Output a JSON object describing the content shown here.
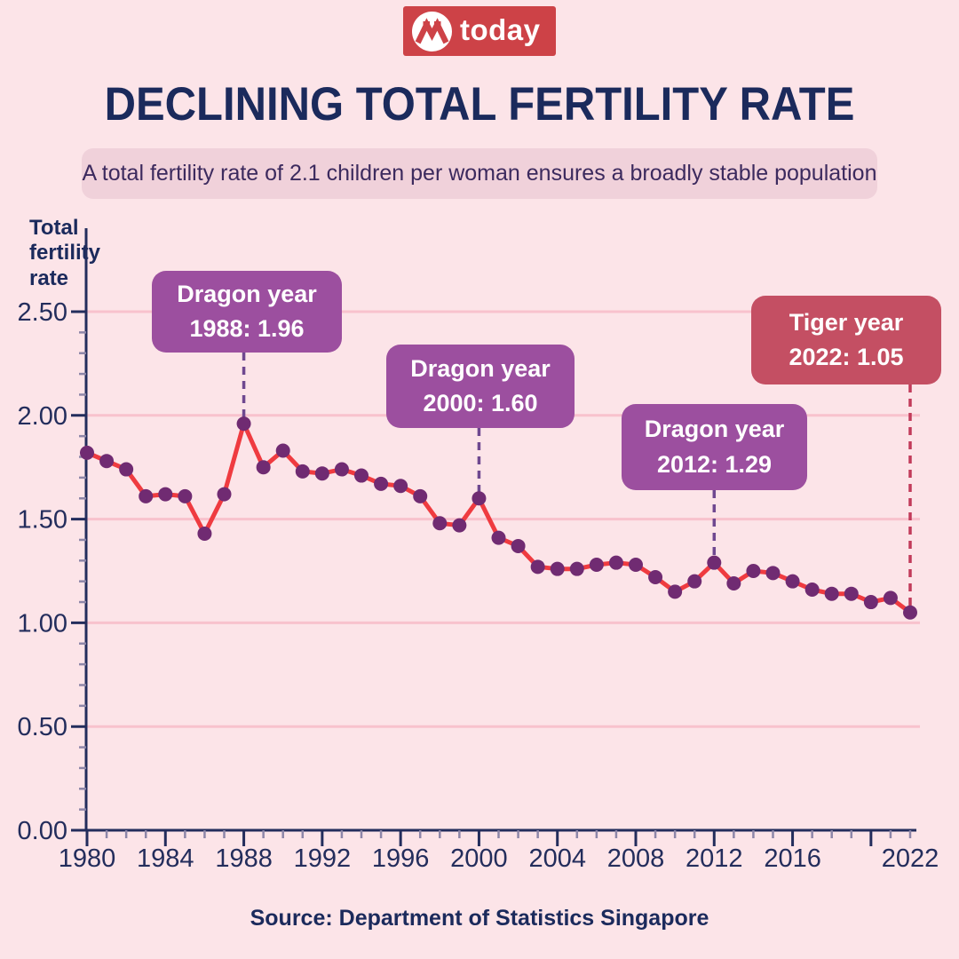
{
  "page": {
    "background": "#fce4e8"
  },
  "logo": {
    "brand": "today",
    "box_color": "#cd4247",
    "mark_icon": "today-m-mark"
  },
  "title": "DECLINING TOTAL FERTILITY RATE",
  "subtitle": "A total fertility rate of 2.1 children per woman ensures a broadly stable population",
  "source": "Source: Department of Statistics Singapore",
  "chart_data": {
    "type": "line",
    "title": "",
    "xlabel": "",
    "ylabel": "Total fertility rate",
    "ylabel_lines": [
      "Total",
      "fertility",
      "rate"
    ],
    "ylim": [
      0,
      2.5
    ],
    "ytick_step": 0.5,
    "yminor_step": 0.1,
    "ytick_labels": [
      "0.00",
      "0.50",
      "1.00",
      "1.50",
      "2.00",
      "2.50"
    ],
    "xtick_labels": [
      "1980",
      "1984",
      "1988",
      "1992",
      "1996",
      "2000",
      "2004",
      "2008",
      "2012",
      "2016",
      "2022"
    ],
    "grid": true,
    "legend": "none",
    "x": [
      1980,
      1981,
      1982,
      1983,
      1984,
      1985,
      1986,
      1987,
      1988,
      1989,
      1990,
      1991,
      1992,
      1993,
      1994,
      1995,
      1996,
      1997,
      1998,
      1999,
      2000,
      2001,
      2002,
      2003,
      2004,
      2005,
      2006,
      2007,
      2008,
      2009,
      2010,
      2011,
      2012,
      2013,
      2014,
      2015,
      2016,
      2017,
      2018,
      2019,
      2020,
      2021,
      2022
    ],
    "series": [
      {
        "name": "Total fertility rate",
        "values": [
          1.82,
          1.78,
          1.74,
          1.61,
          1.62,
          1.61,
          1.43,
          1.62,
          1.96,
          1.75,
          1.83,
          1.73,
          1.72,
          1.74,
          1.71,
          1.67,
          1.66,
          1.61,
          1.48,
          1.47,
          1.6,
          1.41,
          1.37,
          1.27,
          1.26,
          1.26,
          1.28,
          1.29,
          1.28,
          1.22,
          1.15,
          1.2,
          1.29,
          1.19,
          1.25,
          1.24,
          1.2,
          1.16,
          1.14,
          1.14,
          1.1,
          1.12,
          1.05
        ]
      }
    ],
    "annotations": [
      {
        "line1": "Dragon year",
        "line2": "1988: 1.96",
        "year": 1988,
        "value": 1.96,
        "theme": "purple"
      },
      {
        "line1": "Dragon year",
        "line2": "2000: 1.60",
        "year": 2000,
        "value": 1.6,
        "theme": "purple"
      },
      {
        "line1": "Dragon year",
        "line2": "2012: 1.29",
        "year": 2012,
        "value": 1.29,
        "theme": "purple"
      },
      {
        "line1": "Tiger year",
        "line2": "2022: 1.05",
        "year": 2022,
        "value": 1.05,
        "theme": "crimson"
      }
    ],
    "colors": {
      "line": "#ef3b40",
      "marker": "#702b72",
      "grid": "#f8c2cd",
      "axis": "#232d5c",
      "minor_tick": "#8d86a8",
      "callout_purple": "#9c4f9f",
      "callout_crimson": "#c44f63",
      "dash_purple": "#6f4890",
      "dash_crimson": "#c23b5a"
    }
  }
}
